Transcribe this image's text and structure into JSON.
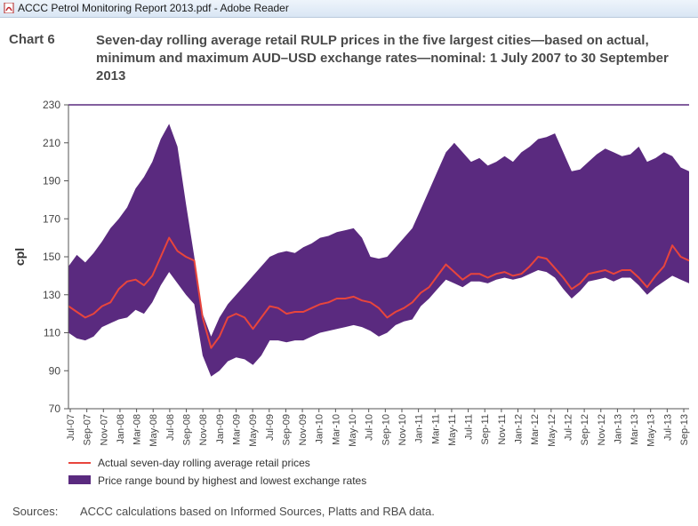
{
  "window": {
    "title": "ACCC Petrol Monitoring Report 2013.pdf - Adobe Reader"
  },
  "chart_heading": "Chart 6",
  "chart_title": "Seven-day rolling average retail RULP prices in the five largest cities—based on actual, minimum and maximum AUD–USD exchange rates—nominal: 1 July 2007 to 30 September 2013",
  "sources": {
    "label": "Sources:",
    "text": "ACCC calculations based on Informed Sources, Platts and RBA data."
  },
  "colors": {
    "band": "#5a2a7f",
    "actual": "#e8453c",
    "topline": "#5a2a7f"
  },
  "chart_data": {
    "type": "area",
    "ylabel": "cpl",
    "ylim": [
      70,
      230
    ],
    "yticks": [
      70,
      90,
      110,
      130,
      150,
      170,
      190,
      210,
      230
    ],
    "x_tick_labels": [
      "Jul-07",
      "Sep-07",
      "Nov-07",
      "Jan-08",
      "Mar-08",
      "May-08",
      "Jul-08",
      "Sep-08",
      "Nov-08",
      "Jan-09",
      "Mar-09",
      "May-09",
      "Jul-09",
      "Sep-09",
      "Nov-09",
      "Jan-10",
      "Mar-10",
      "May-10",
      "Jul-10",
      "Sep-10",
      "Nov-10",
      "Jan-11",
      "Mar-11",
      "May-11",
      "Jul-11",
      "Sep-11",
      "Nov-11",
      "Jan-12",
      "Mar-12",
      "May-12",
      "Jul-12",
      "Sep-12",
      "Nov-12",
      "Jan-13",
      "Mar-13",
      "May-13",
      "Jul-13",
      "Sep-13"
    ],
    "x": [
      "Jul-07",
      "Aug-07",
      "Sep-07",
      "Oct-07",
      "Nov-07",
      "Dec-07",
      "Jan-08",
      "Feb-08",
      "Mar-08",
      "Apr-08",
      "May-08",
      "Jun-08",
      "Jul-08",
      "Aug-08",
      "Sep-08",
      "Oct-08",
      "Nov-08",
      "Dec-08",
      "Jan-09",
      "Feb-09",
      "Mar-09",
      "Apr-09",
      "May-09",
      "Jun-09",
      "Jul-09",
      "Aug-09",
      "Sep-09",
      "Oct-09",
      "Nov-09",
      "Dec-09",
      "Jan-10",
      "Feb-10",
      "Mar-10",
      "Apr-10",
      "May-10",
      "Jun-10",
      "Jul-10",
      "Aug-10",
      "Sep-10",
      "Oct-10",
      "Nov-10",
      "Dec-10",
      "Jan-11",
      "Feb-11",
      "Mar-11",
      "Apr-11",
      "May-11",
      "Jun-11",
      "Jul-11",
      "Aug-11",
      "Sep-11",
      "Oct-11",
      "Nov-11",
      "Dec-11",
      "Jan-12",
      "Feb-12",
      "Mar-12",
      "Apr-12",
      "May-12",
      "Jun-12",
      "Jul-12",
      "Aug-12",
      "Sep-12",
      "Oct-12",
      "Nov-12",
      "Dec-12",
      "Jan-13",
      "Feb-13",
      "Mar-13",
      "Apr-13",
      "May-13",
      "Jun-13",
      "Jul-13",
      "Aug-13",
      "Sep-13"
    ],
    "series": [
      {
        "name": "Actual seven-day rolling average retail prices",
        "values": [
          124,
          121,
          118,
          120,
          124,
          126,
          133,
          137,
          138,
          135,
          140,
          150,
          160,
          153,
          150,
          148,
          118,
          102,
          108,
          118,
          120,
          118,
          112,
          118,
          124,
          123,
          120,
          121,
          121,
          123,
          125,
          126,
          128,
          128,
          129,
          127,
          126,
          123,
          118,
          121,
          123,
          126,
          131,
          134,
          140,
          146,
          142,
          138,
          141,
          141,
          139,
          141,
          142,
          140,
          141,
          145,
          150,
          149,
          144,
          139,
          133,
          136,
          141,
          142,
          143,
          141,
          143,
          143,
          139,
          134,
          140,
          145,
          156,
          150,
          148
        ]
      },
      {
        "name": "Price range bound by highest and lowest exchange rates – low",
        "values": [
          110,
          107,
          106,
          108,
          113,
          115,
          117,
          118,
          122,
          120,
          126,
          135,
          142,
          136,
          130,
          125,
          98,
          87,
          90,
          95,
          97,
          96,
          93,
          98,
          106,
          106,
          105,
          106,
          106,
          108,
          110,
          111,
          112,
          113,
          114,
          113,
          111,
          108,
          110,
          114,
          116,
          117,
          124,
          128,
          133,
          138,
          136,
          134,
          137,
          137,
          136,
          138,
          139,
          138,
          139,
          141,
          143,
          142,
          139,
          133,
          128,
          132,
          137,
          138,
          139,
          137,
          139,
          139,
          135,
          130,
          134,
          137,
          140,
          138,
          136
        ]
      },
      {
        "name": "Price range bound by highest and lowest exchange rates – high",
        "values": [
          145,
          151,
          147,
          152,
          158,
          165,
          170,
          176,
          186,
          192,
          200,
          212,
          220,
          208,
          178,
          150,
          120,
          108,
          118,
          125,
          130,
          135,
          140,
          145,
          150,
          152,
          153,
          152,
          155,
          157,
          160,
          161,
          163,
          164,
          165,
          160,
          150,
          149,
          150,
          155,
          160,
          165,
          175,
          185,
          195,
          205,
          210,
          205,
          200,
          202,
          198,
          200,
          203,
          200,
          205,
          208,
          212,
          213,
          215,
          205,
          195,
          196,
          200,
          204,
          207,
          205,
          203,
          204,
          208,
          200,
          202,
          205,
          203,
          197,
          195
        ]
      }
    ],
    "legend": {
      "position": "bottom-left",
      "entries": [
        "Actual seven-day rolling average retail prices",
        "Price range bound by highest and lowest exchange rates"
      ]
    },
    "grid": false
  }
}
